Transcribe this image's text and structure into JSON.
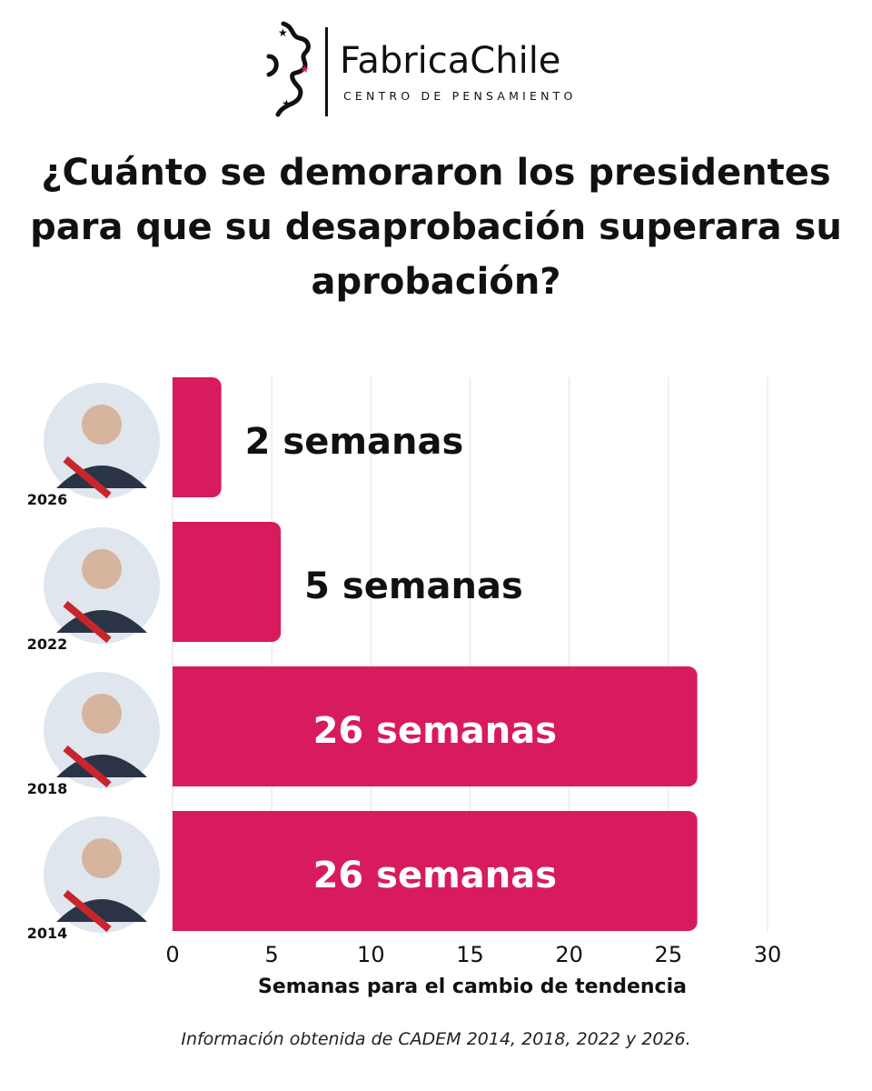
{
  "logo": {
    "name": "FabricaChile",
    "tagline": "CENTRO DE PENSAMIENTO"
  },
  "title": "¿Cuánto se demoraron los presidentes para que su desaprobación superara su aprobación?",
  "source": "Información obtenida de CADEM 2014, 2018, 2022 y 2026.",
  "colors": {
    "bar": "#d81b5e",
    "label_dark": "#111111",
    "label_light": "#ffffff",
    "grid": "#e2e2e2",
    "logo_star": "#d81b5e"
  },
  "chart_data": {
    "type": "bar",
    "orientation": "horizontal",
    "categories": [
      "2026",
      "2022",
      "2018",
      "2014"
    ],
    "values": [
      2,
      5,
      26,
      26
    ],
    "data_labels": [
      "2 semanas",
      "5 semanas",
      "26 semanas",
      "26 semanas"
    ],
    "xlabel": "Semanas para el cambio de tendencia",
    "xlim": [
      0,
      30
    ],
    "xticks": [
      0,
      5,
      10,
      15,
      20,
      25,
      30
    ],
    "grid": "vertical",
    "legend": "none"
  }
}
